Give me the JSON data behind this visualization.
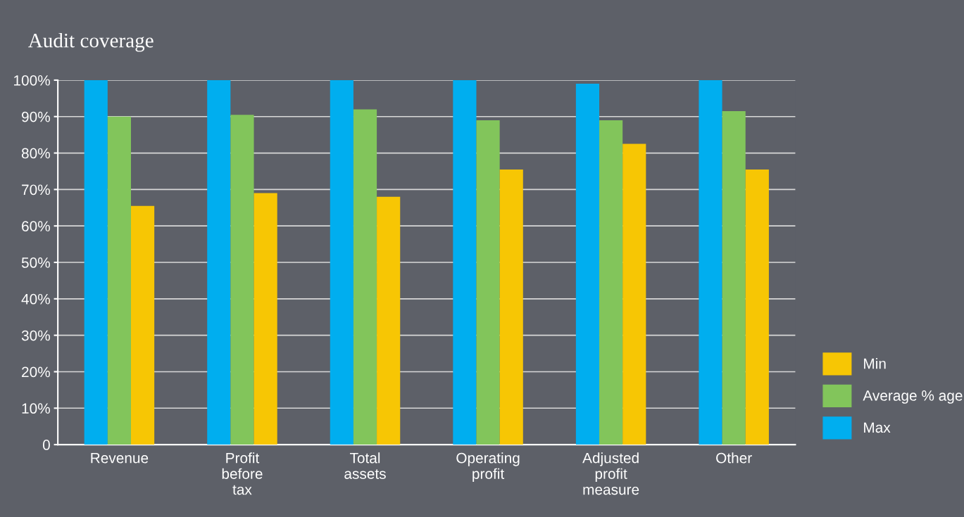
{
  "chart_data": {
    "type": "bar",
    "title": "Audit coverage",
    "categories": [
      "Revenue",
      "Profit\nbefore\ntax",
      "Total\nassets",
      "Operating\nprofit",
      "Adjusted\nprofit\nmeasure",
      "Other"
    ],
    "series": [
      {
        "name": "Max",
        "color": "#00aeef",
        "values": [
          100,
          100,
          100,
          100,
          99,
          100
        ]
      },
      {
        "name": "Average % age",
        "color": "#82c55b",
        "values": [
          90,
          90.5,
          92,
          89,
          89,
          91.5
        ]
      },
      {
        "name": "Min",
        "color": "#f7c604",
        "values": [
          65.5,
          69,
          68,
          75.5,
          82.5,
          75.5
        ]
      }
    ],
    "ylim": [
      0,
      100
    ],
    "yticks": [
      {
        "value": 0,
        "label": "0"
      },
      {
        "value": 10,
        "label": "10%"
      },
      {
        "value": 20,
        "label": "20%"
      },
      {
        "value": 30,
        "label": "30%"
      },
      {
        "value": 40,
        "label": "40%"
      },
      {
        "value": 50,
        "label": "50%"
      },
      {
        "value": 60,
        "label": "60%"
      },
      {
        "value": 70,
        "label": "70%"
      },
      {
        "value": 80,
        "label": "80%"
      },
      {
        "value": 90,
        "label": "90%"
      },
      {
        "value": 100,
        "label": "100%"
      }
    ],
    "grid": "y",
    "legend": "bottom right"
  }
}
